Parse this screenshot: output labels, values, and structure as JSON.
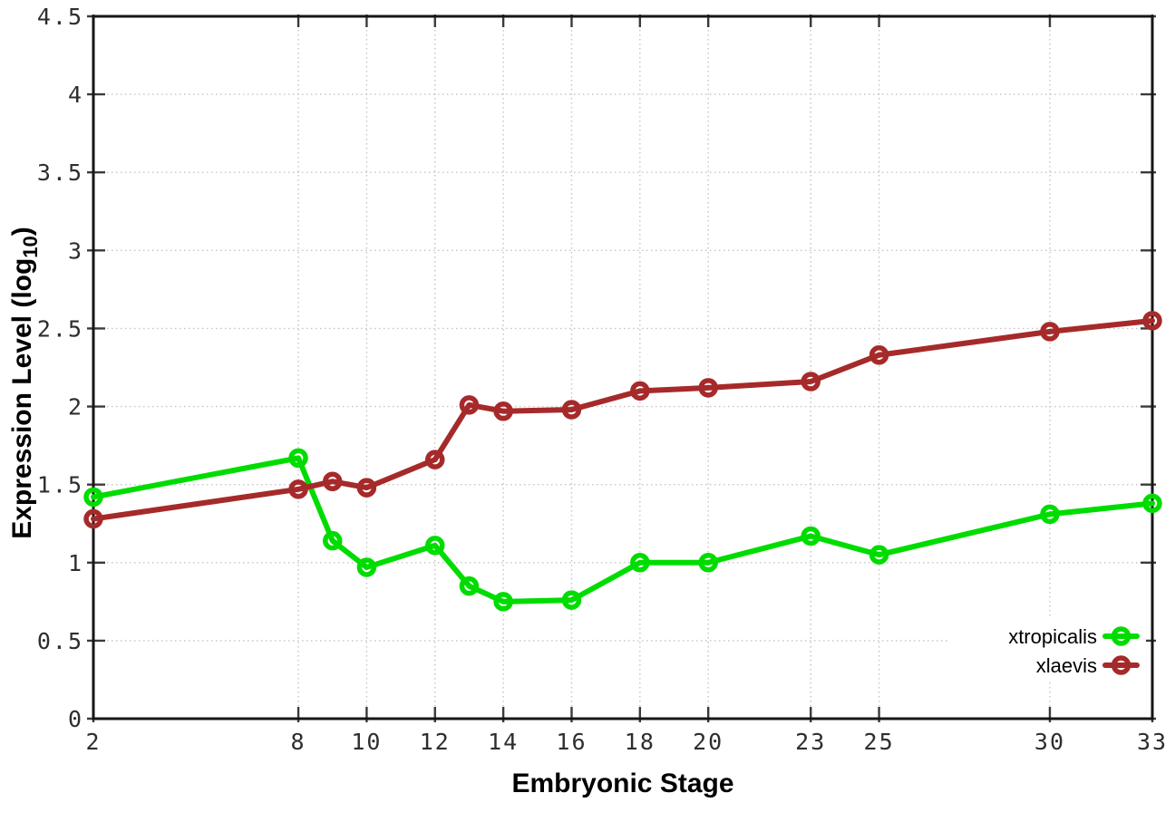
{
  "figure": {
    "background_color": "#ffffff",
    "border_color": "#161616",
    "grid_color": "#c4c4c4",
    "tick_color": "#3a3a3a",
    "tick_label_color": "#2e2e2e",
    "legend_background": "#ffffff"
  },
  "chart_data": {
    "type": "line",
    "title": "",
    "xlabel": "Embryonic Stage",
    "ylabel": "Expression Level (log10)",
    "ylabel_parts": {
      "pre": "Expression Level (log",
      "sub": "10",
      "post": ")"
    },
    "xlim": [
      2,
      33
    ],
    "ylim": [
      0,
      4.5
    ],
    "grid": true,
    "legend_position": "inside-bottom-right",
    "x": [
      2,
      8,
      9,
      10,
      12,
      13,
      14,
      16,
      18,
      20,
      23,
      25,
      30,
      33
    ],
    "x_tick_values": [
      2,
      8,
      10,
      12,
      14,
      16,
      18,
      20,
      23,
      25,
      30,
      33
    ],
    "x_tick_labels": [
      "2",
      "8",
      "10",
      "12",
      "14",
      "16",
      "18",
      "20",
      "23",
      "25",
      "30",
      "33"
    ],
    "y_tick_values": [
      0,
      0.5,
      1,
      1.5,
      2,
      2.5,
      3,
      3.5,
      4,
      4.5
    ],
    "y_tick_labels": [
      "0",
      "0.5",
      "1",
      "1.5",
      "2",
      "2.5",
      "3",
      "3.5",
      "4",
      "4.5"
    ],
    "series": [
      {
        "name": "xtropicalis",
        "color": "#00dc00",
        "marker": "open-circle",
        "values": [
          1.42,
          1.67,
          1.14,
          0.97,
          1.11,
          0.85,
          0.75,
          0.76,
          1.0,
          1.0,
          1.17,
          1.05,
          1.31,
          1.38
        ]
      },
      {
        "name": "xlaevis",
        "color": "#a62a2a",
        "marker": "open-circle",
        "values": [
          1.28,
          1.47,
          1.52,
          1.48,
          1.66,
          2.01,
          1.97,
          1.98,
          2.1,
          2.12,
          2.16,
          2.33,
          2.48,
          2.55
        ]
      }
    ]
  }
}
